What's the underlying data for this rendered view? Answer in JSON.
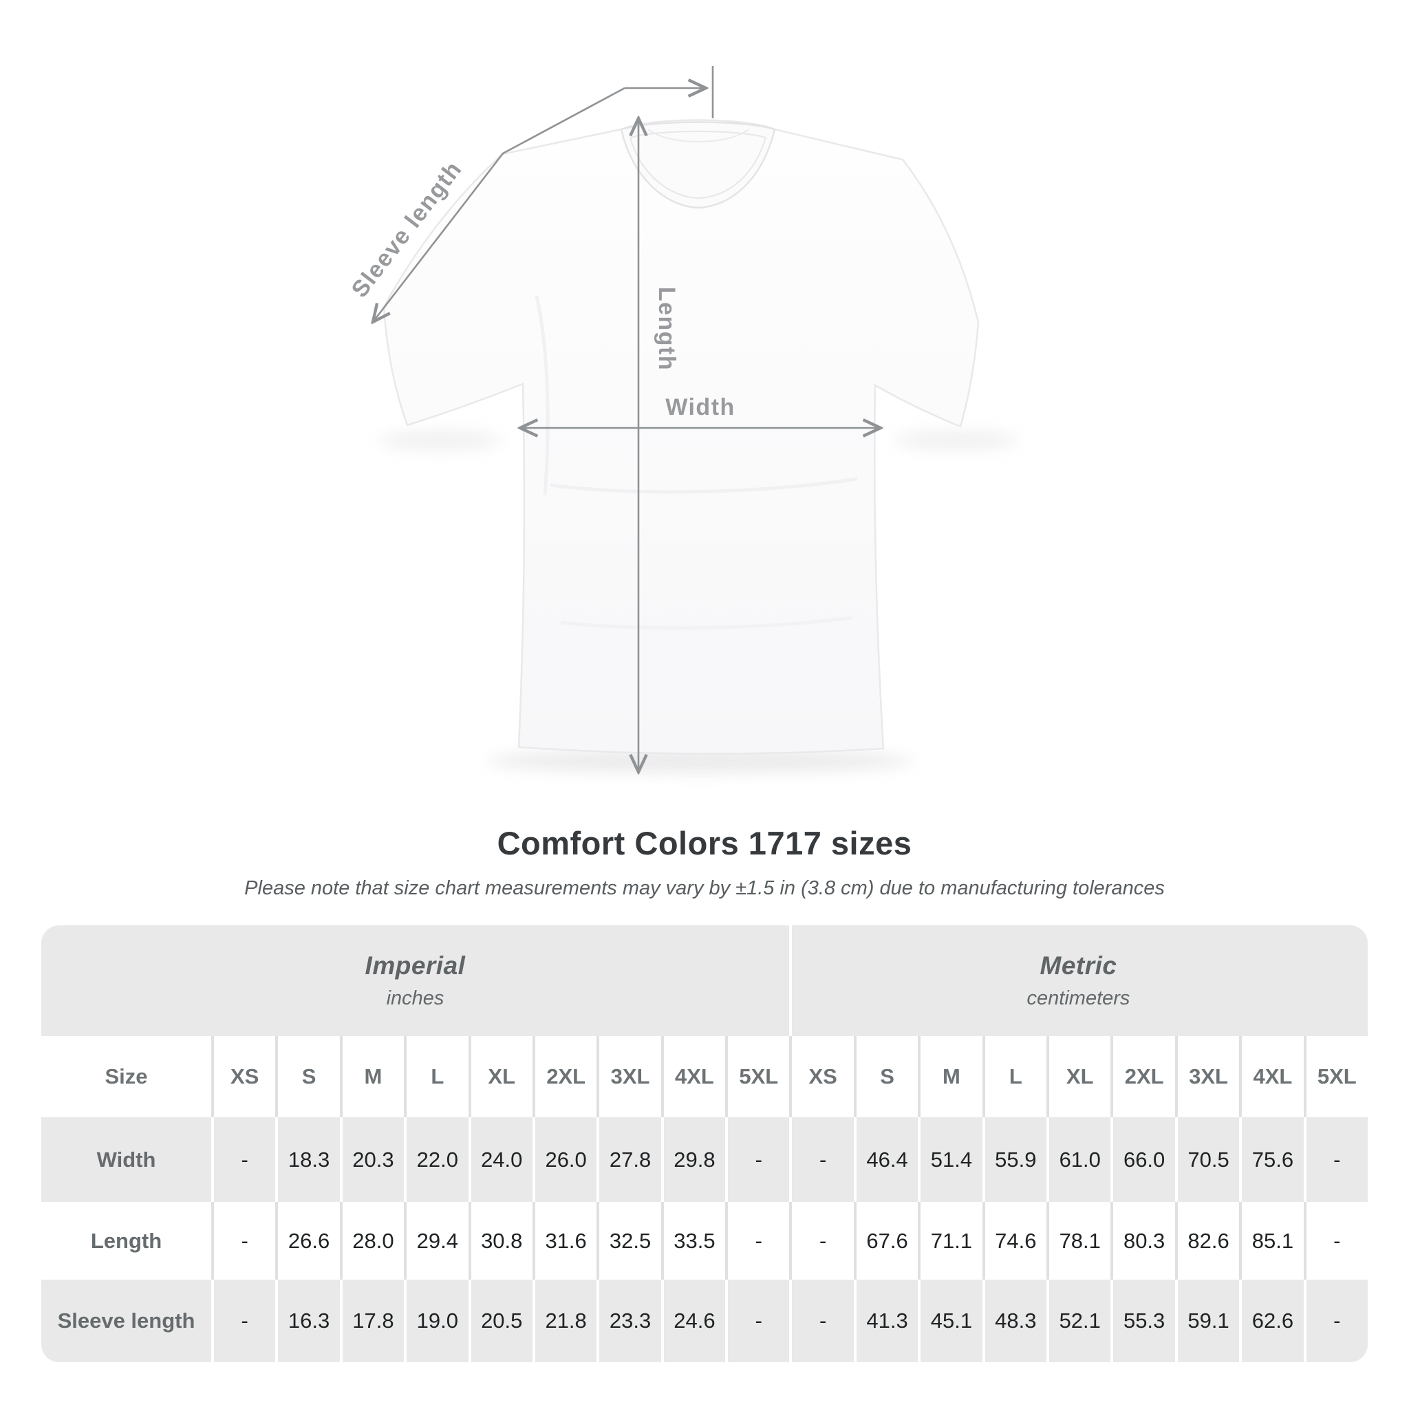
{
  "figure": {
    "labels": {
      "sleeve_length": "Sleeve length",
      "length": "Length",
      "width": "Width"
    },
    "annotation_color": "#8f9396",
    "label_color": "#97999c",
    "shirt_color": "#ffffff"
  },
  "heading": {
    "title": "Comfort Colors 1717 sizes",
    "subtitle": "Please note that size chart measurements may vary by ±1.5 in (3.8 cm) due to manufacturing tolerances"
  },
  "table": {
    "size_label": "Size",
    "sizes": [
      "XS",
      "S",
      "M",
      "L",
      "XL",
      "2XL",
      "3XL",
      "4XL",
      "5XL"
    ],
    "unit_groups": [
      {
        "name": "Imperial",
        "unit": "inches"
      },
      {
        "name": "Metric",
        "unit": "centimeters"
      }
    ],
    "rows": [
      {
        "label": "Width",
        "imperial": [
          "-",
          "18.3",
          "20.3",
          "22.0",
          "24.0",
          "26.0",
          "27.8",
          "29.8",
          "-"
        ],
        "metric": [
          "-",
          "46.4",
          "51.4",
          "55.9",
          "61.0",
          "66.0",
          "70.5",
          "75.6",
          "-"
        ]
      },
      {
        "label": "Length",
        "imperial": [
          "-",
          "26.6",
          "28.0",
          "29.4",
          "30.8",
          "31.6",
          "32.5",
          "33.5",
          "-"
        ],
        "metric": [
          "-",
          "67.6",
          "71.1",
          "74.6",
          "78.1",
          "80.3",
          "82.6",
          "85.1",
          "-"
        ]
      },
      {
        "label": "Sleeve length",
        "imperial": [
          "-",
          "16.3",
          "17.8",
          "19.0",
          "20.5",
          "21.8",
          "23.3",
          "24.6",
          "-"
        ],
        "metric": [
          "-",
          "41.3",
          "45.1",
          "48.3",
          "52.1",
          "55.3",
          "59.1",
          "62.6",
          "-"
        ]
      }
    ]
  },
  "chart_data": {
    "type": "table",
    "title": "Comfort Colors 1717 sizes",
    "note": "Please note that size chart measurements may vary by ±1.5 in (3.8 cm) due to manufacturing tolerances",
    "column_groups": [
      "Imperial (inches)",
      "Metric (centimeters)"
    ],
    "columns": [
      "Size",
      "XS",
      "S",
      "M",
      "L",
      "XL",
      "2XL",
      "3XL",
      "4XL",
      "5XL",
      "XS",
      "S",
      "M",
      "L",
      "XL",
      "2XL",
      "3XL",
      "4XL",
      "5XL"
    ],
    "rows": [
      [
        "Width",
        null,
        18.3,
        20.3,
        22.0,
        24.0,
        26.0,
        27.8,
        29.8,
        null,
        null,
        46.4,
        51.4,
        55.9,
        61.0,
        66.0,
        70.5,
        75.6,
        null
      ],
      [
        "Length",
        null,
        26.6,
        28.0,
        29.4,
        30.8,
        31.6,
        32.5,
        33.5,
        null,
        null,
        67.6,
        71.1,
        74.6,
        78.1,
        80.3,
        82.6,
        85.1,
        null
      ],
      [
        "Sleeve length",
        null,
        16.3,
        17.8,
        19.0,
        20.5,
        21.8,
        23.3,
        24.6,
        null,
        null,
        41.3,
        45.1,
        48.3,
        52.1,
        55.3,
        59.1,
        62.6,
        null
      ]
    ]
  }
}
